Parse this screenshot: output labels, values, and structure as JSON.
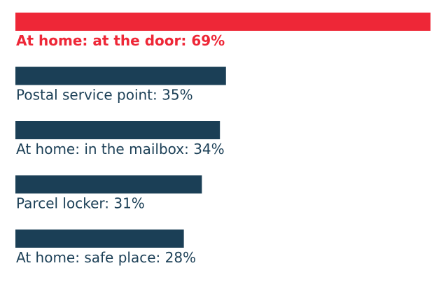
{
  "chart_data": {
    "type": "bar",
    "orientation": "horizontal",
    "categories": [
      "At home: at the door",
      "Postal service point",
      "At home: in the mailbox",
      "Parcel locker",
      "At home: safe place"
    ],
    "values": [
      69,
      35,
      34,
      31,
      28
    ],
    "labels": [
      "At home: at the door: 69%",
      "Postal service point: 35%",
      "At home: in the mailbox: 34%",
      "Parcel locker: 31%",
      "At home: safe place: 28%"
    ],
    "unit": "%",
    "highlight_index": 0,
    "colors": {
      "highlight": "#EE2737",
      "default": "#1B3F56"
    },
    "grid": false,
    "legend": "none"
  }
}
